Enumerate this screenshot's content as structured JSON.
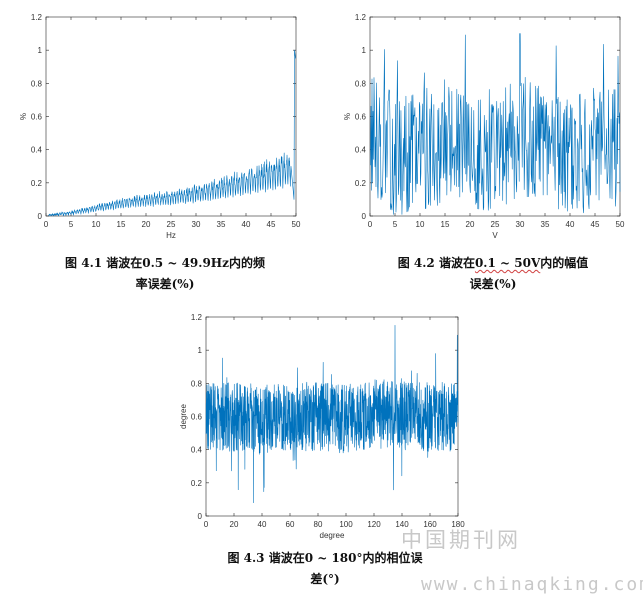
{
  "chart_data": [
    {
      "type": "line",
      "xlabel": "Hz",
      "ylabel": "%",
      "xlim": [
        0,
        50
      ],
      "ylim": [
        0,
        1.2
      ],
      "xticks": [
        0,
        5,
        10,
        15,
        20,
        25,
        30,
        35,
        40,
        45,
        50
      ],
      "yticks": [
        0,
        0.2,
        0.4,
        0.6,
        0.8,
        1,
        1.2
      ],
      "series_color": "#0072BD",
      "pattern": "oscillating error rising roughly linearly from ~0.02 at 0.5 Hz to ~0.45 near 49 Hz, spike to 1.0 at 49.9 Hz",
      "x": [
        0.5,
        5,
        10,
        15,
        20,
        25,
        30,
        35,
        40,
        45,
        49,
        49.9
      ],
      "y": [
        0.02,
        0.04,
        0.08,
        0.12,
        0.15,
        0.17,
        0.2,
        0.25,
        0.3,
        0.36,
        0.42,
        1.0
      ],
      "caption_num": "图 4.1",
      "caption_text": "谐波在0.5 ~ 49.9Hz内的频率误差(%)"
    },
    {
      "type": "line",
      "xlabel": "V",
      "ylabel": "%",
      "xlim": [
        0,
        50
      ],
      "ylim": [
        0,
        1.2
      ],
      "xticks": [
        0,
        5,
        10,
        15,
        20,
        25,
        30,
        35,
        40,
        45,
        50
      ],
      "yticks": [
        0,
        0.2,
        0.4,
        0.6,
        0.8,
        1,
        1.2
      ],
      "series_color": "#0072BD",
      "pattern": "noisy signal mostly between 0.0 and 0.9, mean ~0.4, peaks up to ~1.1 near 30 V",
      "x": [
        0.1,
        5,
        10,
        15,
        20,
        25,
        30,
        35,
        40,
        45,
        50
      ],
      "y": [
        0.5,
        0.35,
        0.4,
        0.45,
        0.35,
        0.4,
        0.5,
        0.4,
        0.35,
        0.4,
        0.4
      ],
      "peak": {
        "x": 30,
        "y": 1.1
      },
      "caption_num": "图 4.2",
      "caption_text": "谐波在0.1 ~ 50V内的幅值误差(%)"
    },
    {
      "type": "line",
      "xlabel": "degree",
      "ylabel": "degree",
      "xlim": [
        0,
        180
      ],
      "ylim": [
        0,
        1.2
      ],
      "xticks": [
        0,
        20,
        40,
        60,
        80,
        100,
        120,
        140,
        160,
        180
      ],
      "yticks": [
        0,
        0.2,
        0.4,
        0.6,
        0.8,
        1,
        1.2
      ],
      "series_color": "#0072BD",
      "pattern": "dense noise centered ~0.6, spanning roughly 0.1 to 1.15",
      "x": [
        0,
        20,
        40,
        60,
        80,
        100,
        120,
        140,
        160,
        180
      ],
      "y": [
        0.6,
        0.6,
        0.58,
        0.6,
        0.6,
        0.58,
        0.62,
        0.6,
        0.6,
        0.6
      ],
      "peak": {
        "x": 135,
        "y": 1.15
      },
      "caption_num": "图 4.3",
      "caption_text": "谐波在0 ~ 180°内的相位误差(°)"
    }
  ],
  "captions": {
    "c1_line1": "图 4.1   谐波在0.5 ~ 49.9Hz内的频",
    "c1_line2": "率误差(%)",
    "c2_line1_pre": "图 4.2   谐波在",
    "c2_line1_squig": "0.1 ~ 50V",
    "c2_line1_post": "内的幅值",
    "c2_line2": "误差(%)",
    "c3_line1": "图 4.3   谐波在0 ~ 180°内的相位误",
    "c3_line2": "差(°)"
  },
  "watermark": {
    "cn": "中国期刊网",
    "en": "www.chinaqking.com"
  }
}
